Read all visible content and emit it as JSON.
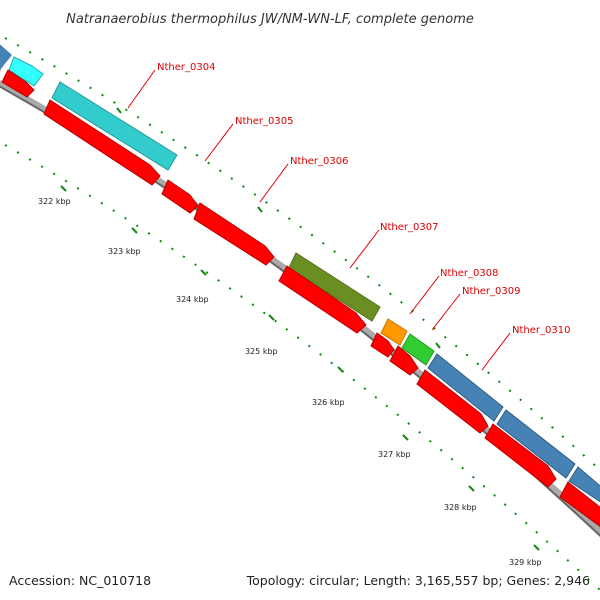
{
  "header": {
    "title": "Natranaerobius thermophilus JW/NM-WN-LF, complete genome"
  },
  "footer": {
    "accession": "Accession: NC_010718",
    "summary": "Topology: circular; Length: 3,165,557 bp; Genes: 2,946"
  },
  "colors": {
    "cds": "#ff0000",
    "backbone": "#888888",
    "tick": "#118811",
    "label": "#dd0000",
    "cyan": "#33cccc",
    "cyan_bright": "#33ffff",
    "olive": "#6b8e23",
    "orange": "#ff9900",
    "green": "#33cc33",
    "steelblue": "#4682b4"
  },
  "gene_labels": [
    "Nther_0304",
    "Nther_0305",
    "Nther_0306",
    "Nther_0307",
    "Nther_0308",
    "Nther_0309",
    "Nther_0310"
  ],
  "kbp_labels": [
    "322 kbp",
    "323 kbp",
    "324 kbp",
    "325 kbp",
    "326 kbp",
    "327 kbp",
    "328 kbp",
    "329 kbp"
  ]
}
